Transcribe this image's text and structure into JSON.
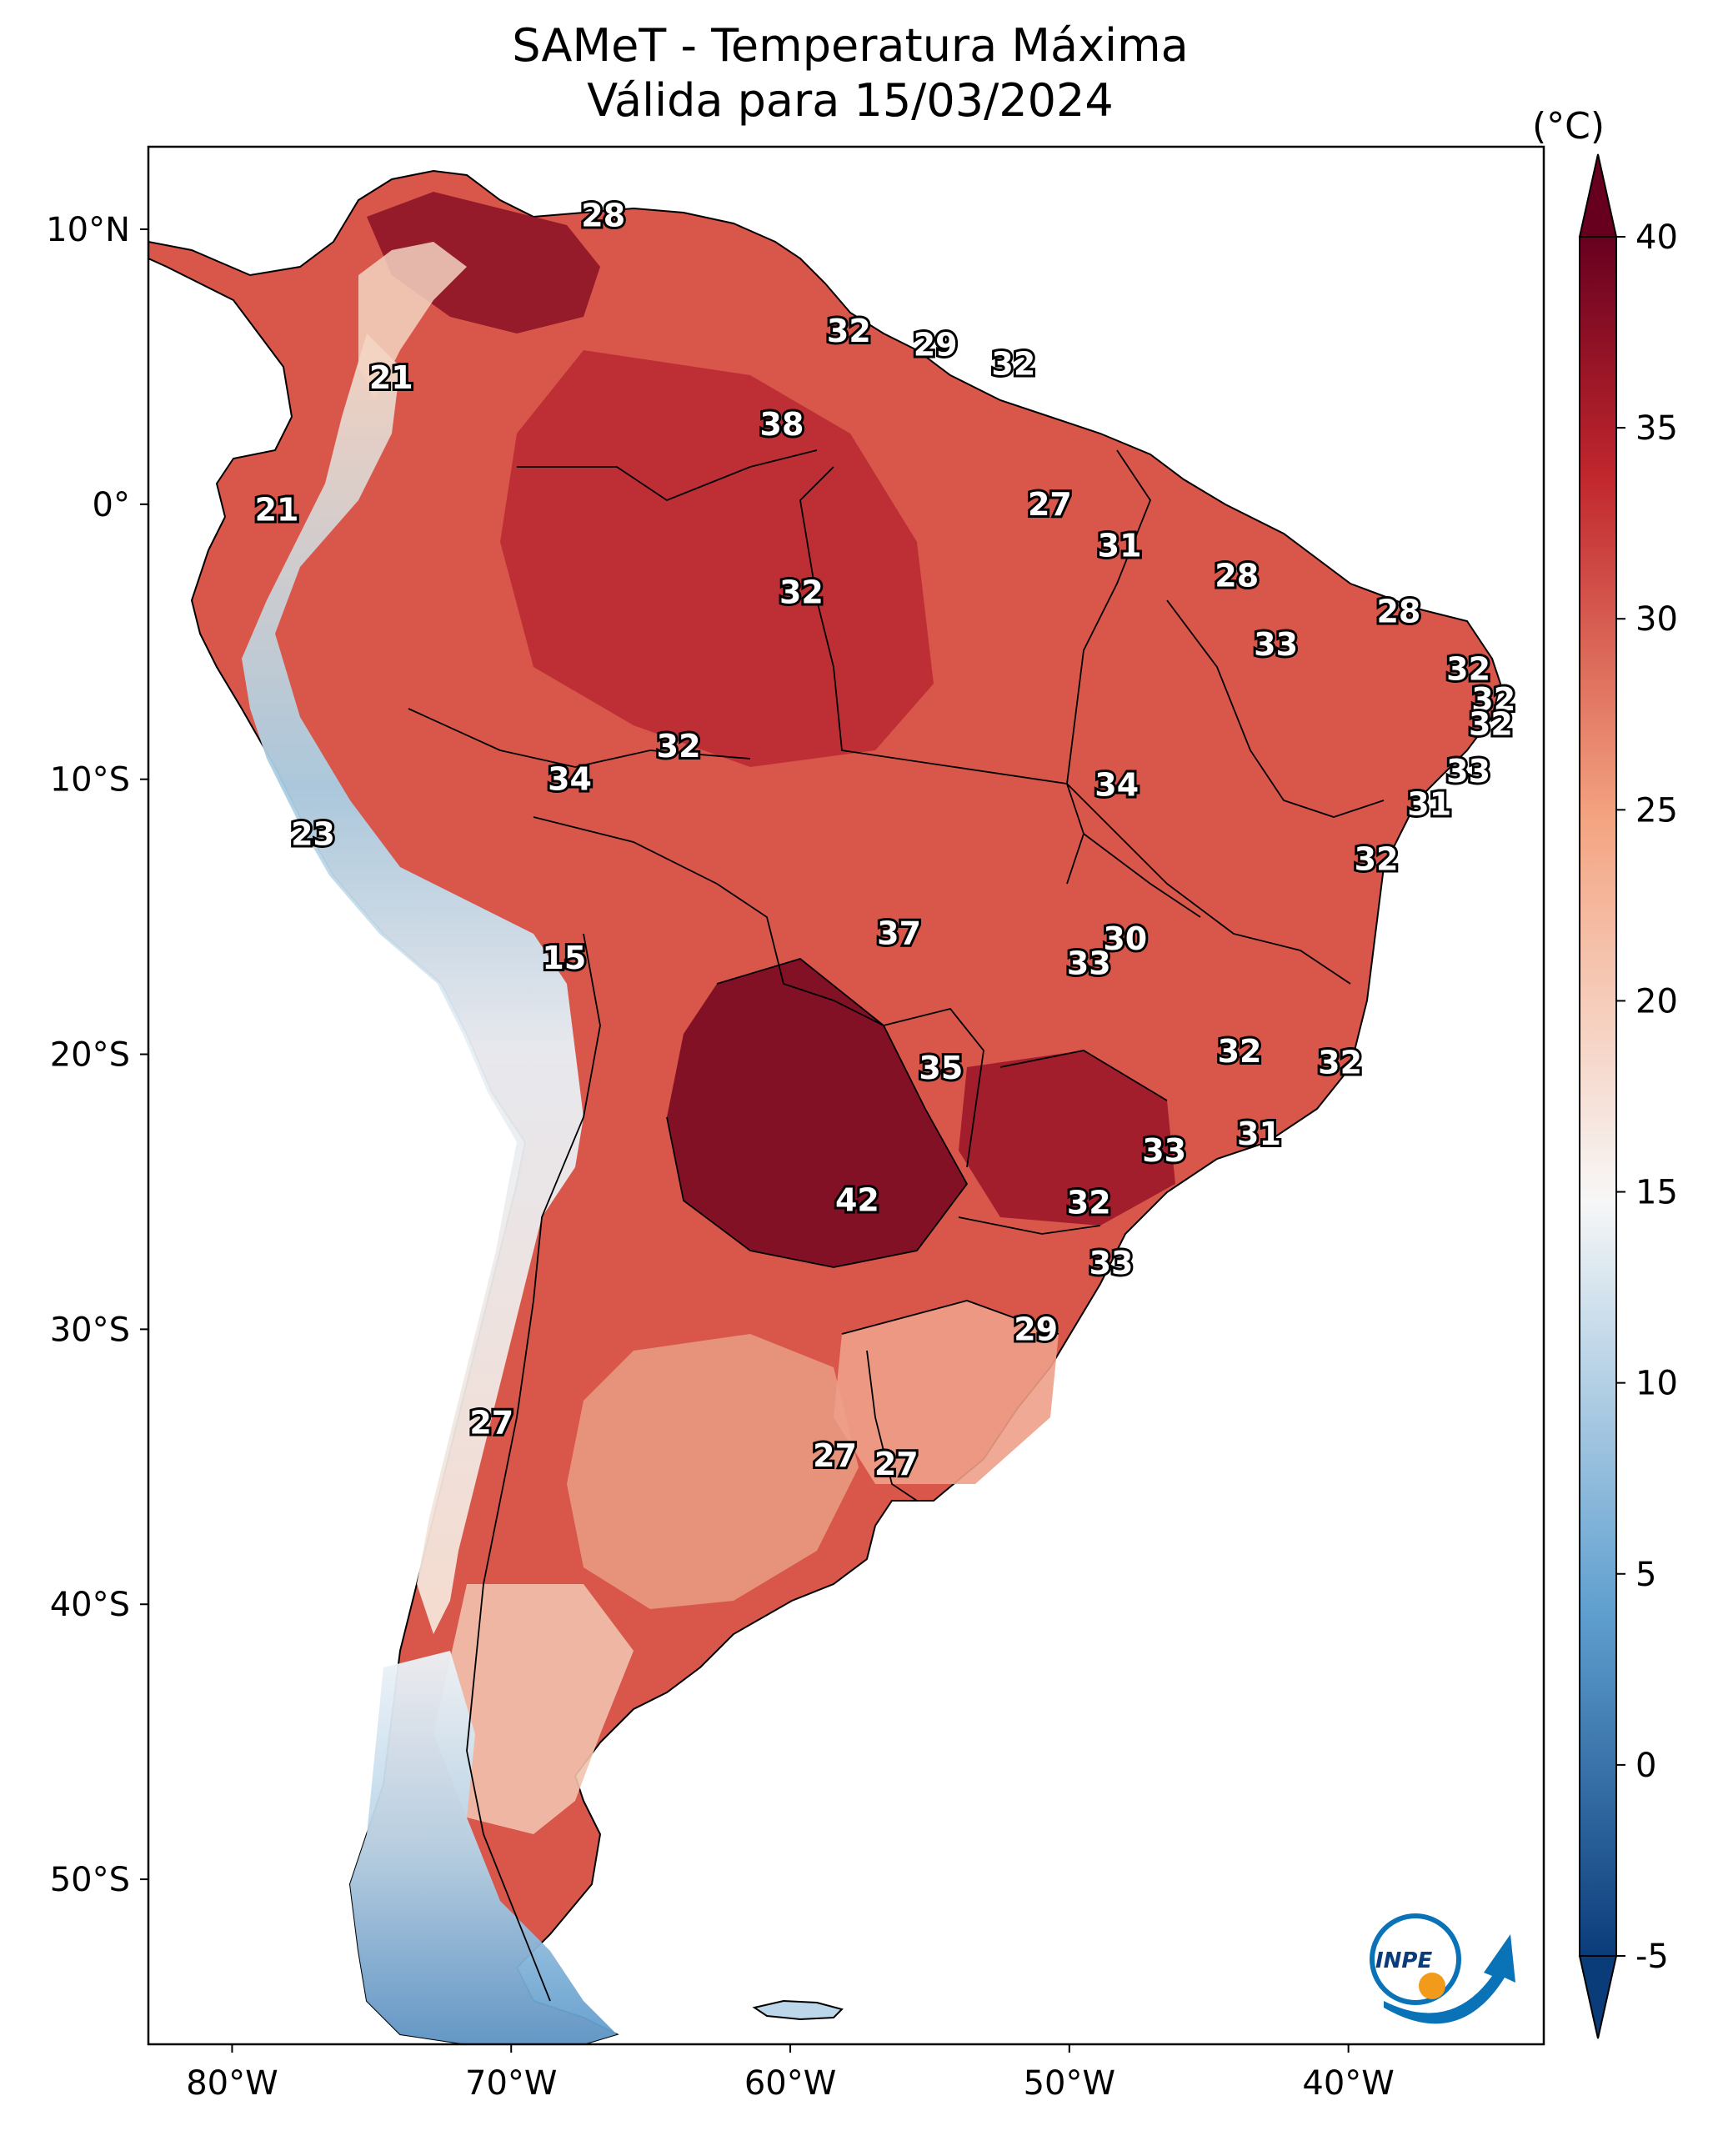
{
  "title_line1": "SAMeT - Temperatura Máxima",
  "title_line2": "Válida para 15/03/2024",
  "colorbar": {
    "unit": "(°C)",
    "ticks": [
      "40",
      "35",
      "30",
      "25",
      "20",
      "15",
      "10",
      "5",
      "0",
      "-5"
    ],
    "min": -5,
    "max": 40,
    "colors": {
      "cold": "#0b3c7a",
      "cool": "#5f9fcf",
      "neutral": "#f7f7f7",
      "warm": "#f4a582",
      "hot": "#c1272d",
      "hottest": "#67001f"
    }
  },
  "axes": {
    "lat_labels": [
      "10°N",
      "0°",
      "10°S",
      "20°S",
      "30°S",
      "40°S",
      "50°S"
    ],
    "lon_labels": [
      "80°W",
      "70°W",
      "60°W",
      "50°W",
      "40°W"
    ]
  },
  "stations": [
    {
      "v": "28",
      "lon": -66.7,
      "lat": 10.5
    },
    {
      "v": "32",
      "lon": -57.9,
      "lat": 6.3
    },
    {
      "v": "29",
      "lon": -54.8,
      "lat": 5.8
    },
    {
      "v": "32",
      "lon": -52.0,
      "lat": 5.1
    },
    {
      "v": "21",
      "lon": -74.3,
      "lat": 4.6
    },
    {
      "v": "38",
      "lon": -60.3,
      "lat": 2.9
    },
    {
      "v": "21",
      "lon": -78.4,
      "lat": -0.2
    },
    {
      "v": "27",
      "lon": -50.7,
      "lat": 0.0
    },
    {
      "v": "31",
      "lon": -48.2,
      "lat": -1.5
    },
    {
      "v": "28",
      "lon": -44.0,
      "lat": -2.6
    },
    {
      "v": "32",
      "lon": -59.6,
      "lat": -3.2
    },
    {
      "v": "28",
      "lon": -38.2,
      "lat": -3.9
    },
    {
      "v": "33",
      "lon": -42.6,
      "lat": -5.1
    },
    {
      "v": "32",
      "lon": -35.7,
      "lat": -6.0
    },
    {
      "v": "32",
      "lon": -34.8,
      "lat": -7.1
    },
    {
      "v": "32",
      "lon": -34.9,
      "lat": -8.0
    },
    {
      "v": "32",
      "lon": -64.0,
      "lat": -8.8
    },
    {
      "v": "33",
      "lon": -35.7,
      "lat": -9.7
    },
    {
      "v": "34",
      "lon": -67.9,
      "lat": -10.0
    },
    {
      "v": "34",
      "lon": -48.3,
      "lat": -10.2
    },
    {
      "v": "31",
      "lon": -37.1,
      "lat": -10.9
    },
    {
      "v": "23",
      "lon": -77.1,
      "lat": -12.0
    },
    {
      "v": "32",
      "lon": -39.0,
      "lat": -12.9
    },
    {
      "v": "37",
      "lon": -56.1,
      "lat": -15.6
    },
    {
      "v": "30",
      "lon": -48.0,
      "lat": -15.8
    },
    {
      "v": "33",
      "lon": -49.3,
      "lat": -16.7
    },
    {
      "v": "15",
      "lon": -68.1,
      "lat": -16.5
    },
    {
      "v": "32",
      "lon": -43.9,
      "lat": -19.9
    },
    {
      "v": "32",
      "lon": -40.3,
      "lat": -20.3
    },
    {
      "v": "35",
      "lon": -54.6,
      "lat": -20.5
    },
    {
      "v": "31",
      "lon": -43.2,
      "lat": -22.9
    },
    {
      "v": "33",
      "lon": -46.6,
      "lat": -23.5
    },
    {
      "v": "32",
      "lon": -49.3,
      "lat": -25.4
    },
    {
      "v": "42",
      "lon": -57.6,
      "lat": -25.3
    },
    {
      "v": "33",
      "lon": -48.5,
      "lat": -27.6
    },
    {
      "v": "29",
      "lon": -51.2,
      "lat": -30.0
    },
    {
      "v": "27",
      "lon": -70.7,
      "lat": -33.4
    },
    {
      "v": "27",
      "lon": -58.4,
      "lat": -34.6
    },
    {
      "v": "27",
      "lon": -56.2,
      "lat": -34.9
    }
  ],
  "logo_text": "INPE"
}
